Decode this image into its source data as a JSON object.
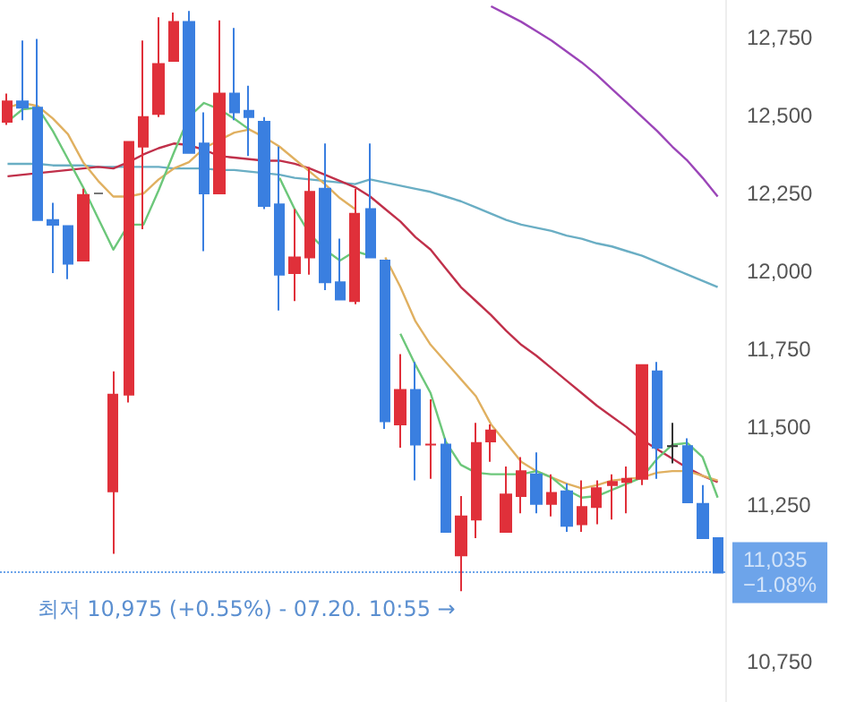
{
  "chart_data": {
    "type": "candlestick",
    "categories": [
      null,
      null,
      null,
      null,
      null,
      null,
      null,
      null,
      null,
      null,
      null,
      null,
      null,
      null,
      null,
      null,
      null,
      null,
      null,
      null,
      null,
      null,
      null,
      null,
      null,
      null,
      null,
      null,
      null,
      null,
      null,
      null,
      null,
      null,
      null,
      null,
      null,
      null,
      null,
      null,
      null,
      null,
      null,
      null,
      null,
      null,
      null,
      null
    ],
    "ohlc": [
      [
        12480,
        12570,
        12470,
        12545
      ],
      [
        12545,
        12740,
        12485,
        12525
      ],
      [
        12525,
        12745,
        12165,
        12165
      ],
      [
        12165,
        12220,
        11995,
        12150
      ],
      [
        12145,
        12145,
        11975,
        12025
      ],
      [
        12035,
        12265,
        12035,
        12245
      ],
      [
        12250,
        12250,
        12250,
        12250
      ],
      [
        11295,
        11680,
        11095,
        11605
      ],
      [
        11605,
        12415,
        11580,
        12415
      ],
      [
        12400,
        12740,
        12135,
        12495
      ],
      [
        12505,
        12815,
        12495,
        12665
      ],
      [
        12675,
        12830,
        12675,
        12800
      ],
      [
        12800,
        12835,
        12380,
        12380
      ],
      [
        12410,
        12510,
        12065,
        12250
      ],
      [
        12250,
        12805,
        12250,
        12570
      ],
      [
        12570,
        12780,
        12485,
        12510
      ],
      [
        12515,
        12595,
        12370,
        12495
      ],
      [
        12480,
        12495,
        12200,
        12210
      ],
      [
        12215,
        12400,
        11875,
        11990
      ],
      [
        11995,
        12200,
        11905,
        12045
      ],
      [
        12045,
        12335,
        11990,
        12255
      ],
      [
        12265,
        12410,
        11940,
        11965
      ],
      [
        11965,
        12105,
        11910,
        11910
      ],
      [
        11905,
        12265,
        11895,
        12185
      ],
      [
        12200,
        12410,
        12045,
        12045
      ],
      [
        12035,
        12035,
        11495,
        11520
      ],
      [
        11510,
        11735,
        11435,
        11620
      ],
      [
        11620,
        11710,
        11330,
        11445
      ],
      [
        11445,
        11590,
        11335,
        11445
      ],
      [
        11445,
        11465,
        11165,
        11165
      ],
      [
        11090,
        11280,
        10975,
        11215
      ],
      [
        11205,
        11515,
        11145,
        11450
      ],
      [
        11455,
        11510,
        11390,
        11490
      ],
      [
        11165,
        11375,
        11165,
        11285
      ],
      [
        11280,
        11405,
        11225,
        11360
      ],
      [
        11350,
        11420,
        11225,
        11255
      ],
      [
        11255,
        11350,
        11215,
        11290
      ],
      [
        11295,
        11320,
        11165,
        11185
      ],
      [
        11190,
        11330,
        11165,
        11245
      ],
      [
        11245,
        11330,
        11190,
        11305
      ],
      [
        11315,
        11350,
        11205,
        11325
      ],
      [
        11325,
        11375,
        11225,
        11335
      ],
      [
        11335,
        11700,
        11315,
        11700
      ],
      [
        11680,
        11710,
        11335,
        11435
      ],
      [
        11440,
        11515,
        11385,
        11440
      ],
      [
        11440,
        11465,
        11260,
        11260
      ],
      [
        11255,
        11315,
        11145,
        11145
      ],
      [
        11145,
        11145,
        11035,
        11035
      ]
    ],
    "colors": [
      "#e0303a",
      "#3a7fe0",
      "#3a7fe0",
      "#3a7fe0",
      "#3a7fe0",
      "#e0303a",
      "#777777",
      "#e0303a",
      "#e0303a",
      "#e0303a",
      "#e0303a",
      "#e0303a",
      "#3a7fe0",
      "#3a7fe0",
      "#e0303a",
      "#3a7fe0",
      "#3a7fe0",
      "#3a7fe0",
      "#3a7fe0",
      "#e0303a",
      "#e0303a",
      "#3a7fe0",
      "#3a7fe0",
      "#e0303a",
      "#3a7fe0",
      "#3a7fe0",
      "#e0303a",
      "#3a7fe0",
      "#e0303a",
      "#3a7fe0",
      "#e0303a",
      "#e0303a",
      "#e0303a",
      "#e0303a",
      "#e0303a",
      "#3a7fe0",
      "#e0303a",
      "#3a7fe0",
      "#e0303a",
      "#e0303a",
      "#e0303a",
      "#e0303a",
      "#e0303a",
      "#3a7fe0",
      "#333333",
      "#3a7fe0",
      "#3a7fe0",
      "#3a7fe0"
    ],
    "series": [
      {
        "type": "line",
        "color": "#6aaec4",
        "values": [
          12345,
          12345,
          12345,
          12340,
          12340,
          12340,
          12335,
          12335,
          12335,
          12335,
          12335,
          12330,
          12330,
          12330,
          12325,
          12325,
          12320,
          12315,
          12310,
          12300,
          12295,
          12290,
          12285,
          12280,
          12295,
          12285,
          12275,
          12265,
          12255,
          12240,
          12225,
          12205,
          12185,
          12165,
          12150,
          12140,
          12130,
          12115,
          12105,
          12090,
          12080,
          12065,
          12050,
          12030,
          12010,
          11990,
          11970,
          11950
        ]
      },
      {
        "type": "line",
        "color": "#c0304a",
        "values": [
          12305,
          12310,
          12315,
          12320,
          12325,
          12330,
          12335,
          12330,
          12350,
          12375,
          12395,
          12410,
          12405,
          12390,
          12370,
          12365,
          12360,
          12355,
          12355,
          12345,
          12330,
          12310,
          12290,
          12270,
          12240,
          12200,
          12160,
          12110,
          12070,
          12010,
          11950,
          11905,
          11860,
          11810,
          11765,
          11730,
          11690,
          11650,
          11610,
          11570,
          11535,
          11500,
          11460,
          11430,
          11400,
          11370,
          11345,
          11325
        ]
      },
      {
        "type": "line",
        "color": "#e0b060",
        "values": [
          12525,
          12540,
          12530,
          12490,
          12440,
          12350,
          12290,
          12240,
          12240,
          12250,
          12295,
          12330,
          12350,
          12395,
          12420,
          12445,
          12455,
          12430,
          12400,
          12360,
          12320,
          12280,
          12235,
          12200,
          null,
          12045,
          11950,
          11840,
          11765,
          11710,
          11655,
          11600,
          11510,
          11450,
          11390,
          11360,
          11340,
          11320,
          11305,
          11315,
          11330,
          11335,
          11340,
          11355,
          11360,
          11360,
          11345,
          11330
        ]
      },
      {
        "type": "line",
        "color": "#6cc77a",
        "values": [
          12480,
          12520,
          12525,
          12450,
          12360,
          12270,
          12170,
          12070,
          12150,
          12150,
          12260,
          12380,
          12495,
          12540,
          12520,
          12490,
          12455,
          null,
          12300,
          12200,
          12120,
          12070,
          12035,
          12065,
          12050,
          null,
          11800,
          11700,
          11610,
          11455,
          11380,
          11355,
          11350,
          11350,
          11350,
          11360,
          11340,
          11300,
          11275,
          11280,
          11300,
          11320,
          11340,
          11400,
          11445,
          11450,
          11405,
          11275
        ]
      },
      {
        "type": "line",
        "color": "#9b45b8",
        "values": [
          null,
          null,
          null,
          null,
          null,
          null,
          null,
          null,
          null,
          null,
          null,
          null,
          null,
          null,
          null,
          null,
          null,
          null,
          null,
          null,
          null,
          null,
          null,
          null,
          null,
          null,
          null,
          null,
          null,
          null,
          null,
          null,
          12850,
          12825,
          12800,
          12770,
          12740,
          12705,
          12670,
          12630,
          12585,
          12540,
          12495,
          12450,
          12400,
          12355,
          12300,
          12240
        ]
      }
    ],
    "ylim": [
      10620,
      12870
    ],
    "yticks": [
      {
        "value": 10750,
        "label": "10,750"
      },
      {
        "value": 11250,
        "label": "11,250"
      },
      {
        "value": 11500,
        "label": "11,500"
      },
      {
        "value": 11750,
        "label": "11,750"
      },
      {
        "value": 12000,
        "label": "12,000"
      },
      {
        "value": 12250,
        "label": "12,250"
      },
      {
        "value": 12500,
        "label": "12,500"
      },
      {
        "value": 12750,
        "label": "12,750"
      }
    ],
    "tick_labels": "y",
    "marker": "none",
    "ref_lines": [
      {
        "axis": "y",
        "value": 11035,
        "label": "11,035\n−1.08%",
        "color": "#2f7de1",
        "line_style": "dotted"
      }
    ],
    "annotations": [
      "최저 10,975 (+0.55%) - 07.20. 10:55 →"
    ]
  }
}
